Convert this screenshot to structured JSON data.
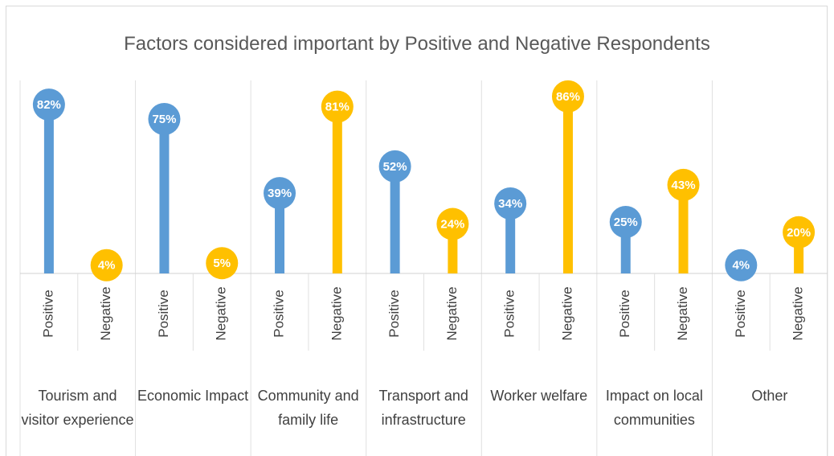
{
  "chart_data": {
    "type": "lollipop",
    "title": "Factors considered important by Positive and Negative Respondents",
    "categories": [
      "Tourism and visitor experience",
      "Economic Impact",
      "Community and family life",
      "Transport and infrastructure",
      "Worker welfare",
      "Impact on local communities",
      "Other"
    ],
    "series": [
      {
        "name": "Positive",
        "color": "#5b9bd5",
        "values": [
          82,
          75,
          39,
          52,
          34,
          25,
          4
        ],
        "value_labels": [
          "82%",
          "75%",
          "39%",
          "52%",
          "34%",
          "25%",
          "4%"
        ]
      },
      {
        "name": "Negative",
        "color": "#ffc000",
        "values": [
          4,
          5,
          81,
          24,
          86,
          43,
          20
        ],
        "value_labels": [
          "4%",
          "5%",
          "81%",
          "24%",
          "86%",
          "43%",
          "20%"
        ]
      }
    ],
    "ylim": [
      0,
      100
    ]
  }
}
